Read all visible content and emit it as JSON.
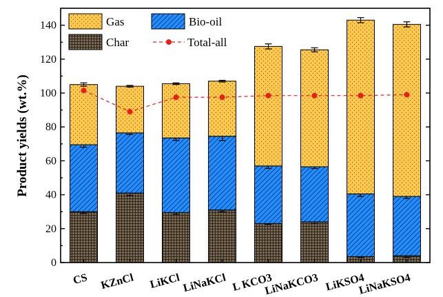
{
  "chart_data": {
    "type": "bar",
    "stacked": true,
    "ylabel": "Product yields (wt.%)",
    "xlabel": "",
    "ylim": [
      0,
      150
    ],
    "yticks": [
      0,
      20,
      40,
      60,
      80,
      100,
      120,
      140
    ],
    "categories": [
      "CS",
      "KZnCl",
      "LiKCl",
      "LiNaKCl",
      "L KCO3",
      "LiNaKCO3",
      "LiKSO4",
      "LiNaKSO4"
    ],
    "series": [
      {
        "name": "Char",
        "color": "#7b6a55",
        "pattern": "grid",
        "values": [
          30,
          41,
          29.5,
          31,
          23,
          24,
          3.5,
          4
        ],
        "errors": [
          1,
          1.5,
          1,
          1,
          0.5,
          1,
          0.5,
          1
        ]
      },
      {
        "name": "Bio-oil",
        "color": "#1e90ff",
        "pattern": "hatch",
        "values": [
          39.5,
          35.5,
          44,
          43.5,
          34,
          32.5,
          37,
          35
        ],
        "errors": [
          1.5,
          1,
          1.5,
          2.5,
          1.5,
          1,
          1.5,
          1.2
        ]
      },
      {
        "name": "Gas",
        "color": "#ffc94d",
        "pattern": "dots",
        "values": [
          35.5,
          27.5,
          32,
          32.5,
          70.5,
          69,
          102.5,
          101.5
        ],
        "errors": [
          1,
          0.5,
          0.5,
          0.5,
          1.5,
          1.2,
          1.5,
          1.5
        ]
      }
    ],
    "line_series": {
      "name": "Total-all",
      "color": "#e8201a",
      "values": [
        101.5,
        89,
        97.5,
        97.5,
        98.5,
        98.5,
        98.5,
        99
      ]
    },
    "legend": {
      "position": "top-left",
      "entries": [
        "Gas",
        "Bio-oil",
        "Char",
        "Total-all"
      ]
    },
    "grid": false
  }
}
